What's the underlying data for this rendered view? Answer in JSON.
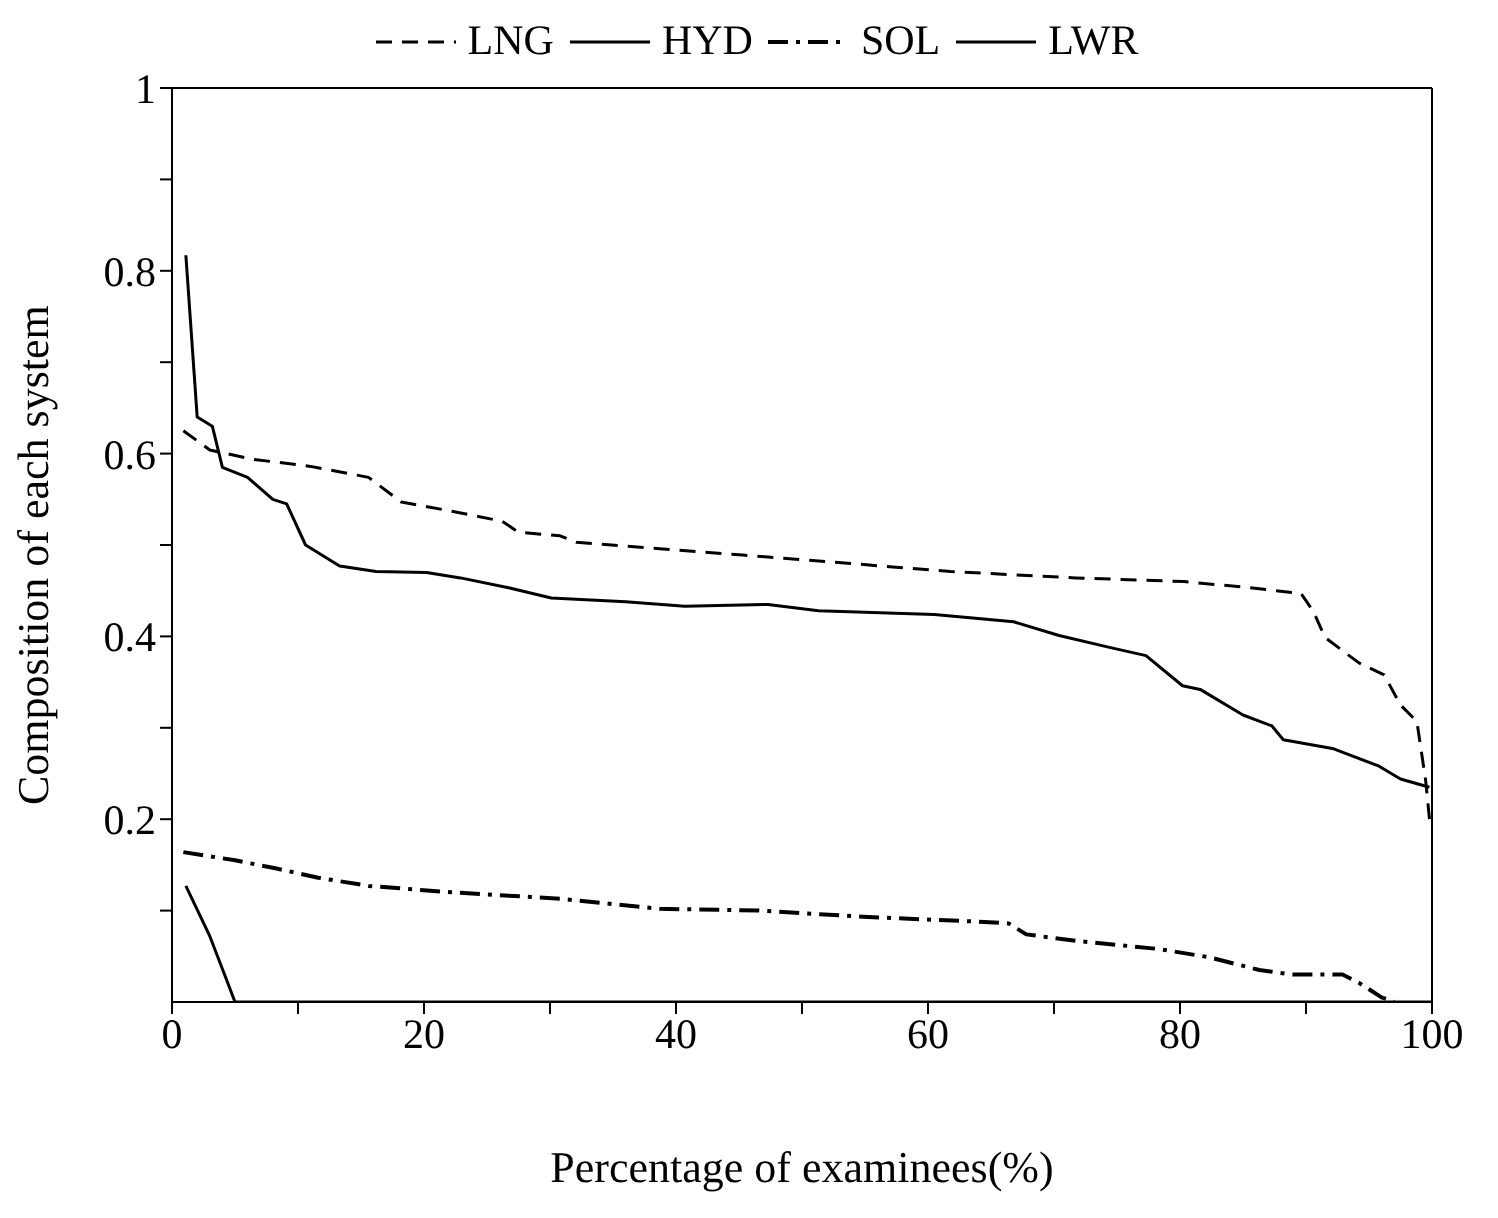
{
  "chart_data": {
    "type": "line",
    "xlabel": "Percentage of examinees(%)",
    "ylabel": "Composition of each system",
    "xlim": [
      0,
      100
    ],
    "ylim": [
      0,
      1
    ],
    "xticks": [
      0,
      {
        "value": 10,
        "label": null
      },
      20,
      {
        "value": 30,
        "label": null
      },
      40,
      {
        "value": 50,
        "label": null
      },
      60,
      {
        "value": 70,
        "label": null
      },
      80,
      {
        "value": 90,
        "label": null
      },
      100
    ],
    "yticks": [
      {
        "value": 0.1,
        "label": null
      },
      0.2,
      {
        "value": 0.3,
        "label": null
      },
      0.4,
      {
        "value": 0.5,
        "label": null
      },
      0.6,
      {
        "value": 0.7,
        "label": null
      },
      0.8,
      {
        "value": 0.9,
        "label": null
      },
      1
    ],
    "legend": "top",
    "marker": "none",
    "series": [
      {
        "name": "LNG",
        "color": "#000000",
        "line_style": "dashed",
        "x": [
          0.9,
          3,
          6.3,
          11,
          15.6,
          18.2,
          22.2,
          26.2,
          27.5,
          30.8,
          32.1,
          38.7,
          45.3,
          51.9,
          57.2,
          61.8,
          71.7,
          80.3,
          85,
          89.6,
          90.6,
          91.5,
          94.2,
          96.2,
          97.5,
          98.8,
          99.5,
          99.8
        ],
        "values": [
          0.625,
          0.604,
          0.594,
          0.586,
          0.574,
          0.547,
          0.537,
          0.526,
          0.514,
          0.51,
          0.503,
          0.496,
          0.489,
          0.482,
          0.476,
          0.471,
          0.464,
          0.46,
          0.454,
          0.447,
          0.427,
          0.399,
          0.371,
          0.358,
          0.325,
          0.307,
          0.242,
          0.2
        ]
      },
      {
        "name": "HYD",
        "color": "#000000",
        "line_style": "solid",
        "x": [
          1.1,
          2,
          3.2,
          4,
          6,
          8,
          9.1,
          10.6,
          13.3,
          16.2,
          20.2,
          22.9,
          26.8,
          30.1,
          36,
          40.7,
          47.3,
          51.3,
          60.5,
          66.8,
          70.4,
          74.4,
          77.3,
          80.2,
          81.6,
          85,
          87.3,
          88.2,
          92.2,
          95.8,
          97.5,
          99.8
        ],
        "values": [
          0.817,
          0.64,
          0.63,
          0.585,
          0.574,
          0.55,
          0.545,
          0.5,
          0.477,
          0.471,
          0.47,
          0.464,
          0.453,
          0.442,
          0.438,
          0.433,
          0.435,
          0.428,
          0.424,
          0.416,
          0.401,
          0.388,
          0.379,
          0.346,
          0.342,
          0.314,
          0.302,
          0.287,
          0.277,
          0.258,
          0.244,
          0.235
        ]
      },
      {
        "name": "SOL",
        "color": "#000000",
        "line_style": "dashdot",
        "x": [
          0.9,
          5,
          8.3,
          11.6,
          15.6,
          22.2,
          30.8,
          38.7,
          46.6,
          55.2,
          63.8,
          66.4,
          67.8,
          71.7,
          78.3,
          82.3,
          86.3,
          88.9,
          92.9,
          94.2,
          96,
          97
        ],
        "values": [
          0.164,
          0.155,
          0.146,
          0.136,
          0.127,
          0.12,
          0.113,
          0.102,
          0.1,
          0.093,
          0.088,
          0.086,
          0.074,
          0.067,
          0.058,
          0.049,
          0.035,
          0.03,
          0.03,
          0.021,
          0.005,
          0
        ]
      },
      {
        "name": "LWR",
        "color": "#000000",
        "line_style": "solid",
        "x": [
          1.1,
          3,
          4.2,
          5,
          100
        ],
        "values": [
          0.127,
          0.072,
          0.029,
          0,
          0
        ]
      }
    ]
  }
}
